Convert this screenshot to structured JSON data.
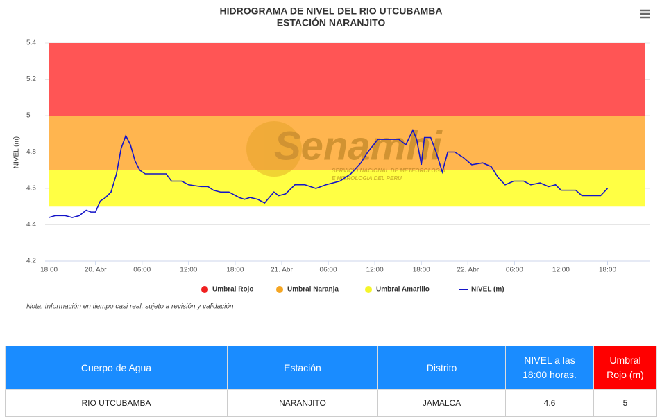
{
  "chart_data": {
    "type": "line",
    "title": "HIDROGRAMA DE NIVEL DEL RIO UTCUBAMBA",
    "subtitle": "ESTACIÓN NARANJITO",
    "y_label": "NIVEL (m)",
    "note": "Nota: Información en tiempo casi real, sujeto a revisión y validación",
    "watermark": {
      "title": "Senamhi",
      "lines": [
        "SERVICIO NACIONAL DE METEOROLOGIA",
        "E HIDROLOGIA DEL PERU"
      ]
    },
    "bands": [
      {
        "name": "Umbral Rojo",
        "color": "#ff5555",
        "legend_color": "#f02020",
        "from": 5,
        "to": 5.4
      },
      {
        "name": "Umbral Naranja",
        "color": "#ffb54f",
        "legend_color": "#f5a623",
        "from": 4.7,
        "to": 5
      },
      {
        "name": "Umbral Amarillo",
        "color": "#ffff44",
        "legend_color": "#f5f52a",
        "from": 4.5,
        "to": 4.7
      }
    ],
    "series": [
      {
        "name": "NIVEL (m)",
        "color": "#1414c8",
        "x": [
          0,
          0.8,
          2.1,
          3.0,
          3.9,
          4.8,
          5.4,
          6.0,
          6.6,
          7.3,
          8.0,
          8.7,
          9.3,
          9.9,
          10.5,
          11.1,
          11.7,
          12.4,
          13.8,
          15.1,
          15.8,
          17.1,
          18.0,
          19.6,
          20.5,
          21.2,
          22.1,
          23.2,
          24.5,
          25.2,
          25.9,
          26.9,
          27.8,
          28.4,
          29.0,
          29.6,
          30.5,
          31.7,
          33.0,
          34.4,
          35.7,
          37.5,
          38.9,
          40.2,
          41.1,
          42.4,
          43.8,
          45.1,
          46.0,
          46.9,
          47.4,
          48.0,
          48.4,
          49.2,
          49.9,
          50.7,
          51.4,
          52.3,
          53.4,
          54.5,
          55.9,
          57.0,
          57.9,
          58.8,
          59.9,
          61.2,
          62.1,
          63.3,
          64.4,
          65.3,
          66.0,
          67.9,
          68.7,
          71.1,
          72
        ],
        "values": [
          4.44,
          4.45,
          4.45,
          4.44,
          4.45,
          4.48,
          4.47,
          4.47,
          4.53,
          4.55,
          4.58,
          4.68,
          4.82,
          4.89,
          4.84,
          4.75,
          4.7,
          4.68,
          4.68,
          4.68,
          4.64,
          4.64,
          4.62,
          4.61,
          4.61,
          4.59,
          4.58,
          4.58,
          4.55,
          4.54,
          4.55,
          4.54,
          4.52,
          4.55,
          4.58,
          4.56,
          4.57,
          4.62,
          4.62,
          4.6,
          4.62,
          4.64,
          4.68,
          4.74,
          4.8,
          4.87,
          4.87,
          4.87,
          4.84,
          4.92,
          4.87,
          4.73,
          4.88,
          4.88,
          4.8,
          4.69,
          4.8,
          4.8,
          4.77,
          4.73,
          4.74,
          4.72,
          4.66,
          4.62,
          4.64,
          4.64,
          4.62,
          4.63,
          4.61,
          4.62,
          4.59,
          4.59,
          4.56,
          4.56,
          4.6
        ]
      }
    ],
    "xlim": [
      -0.5,
      77.5
    ],
    "xticks": [
      {
        "value": 0,
        "label": "18:00"
      },
      {
        "value": 6,
        "label": "20. Abr"
      },
      {
        "value": 12,
        "label": "06:00"
      },
      {
        "value": 18,
        "label": "12:00"
      },
      {
        "value": 24,
        "label": "18:00"
      },
      {
        "value": 30,
        "label": "21. Abr"
      },
      {
        "value": 36,
        "label": "06:00"
      },
      {
        "value": 42,
        "label": "12:00"
      },
      {
        "value": 48,
        "label": "18:00"
      },
      {
        "value": 54,
        "label": "22. Abr"
      },
      {
        "value": 60,
        "label": "06:00"
      },
      {
        "value": 66,
        "label": "12:00"
      },
      {
        "value": 72,
        "label": "18:00"
      }
    ],
    "ylim": [
      4.2,
      5.4
    ],
    "yticks": [
      4.2,
      4.4,
      4.6,
      4.8,
      5,
      5.2,
      5.4
    ],
    "grid": true
  },
  "table": {
    "header": [
      "Cuerpo de Agua",
      "Estación",
      "Distrito",
      "NIVEL a las 18:00 horas.",
      "Umbral Rojo (m)"
    ],
    "rows": [
      [
        "RIO UTCUBAMBA",
        "NARANJITO",
        "JAMALCA",
        "4.6",
        "5"
      ]
    ]
  }
}
